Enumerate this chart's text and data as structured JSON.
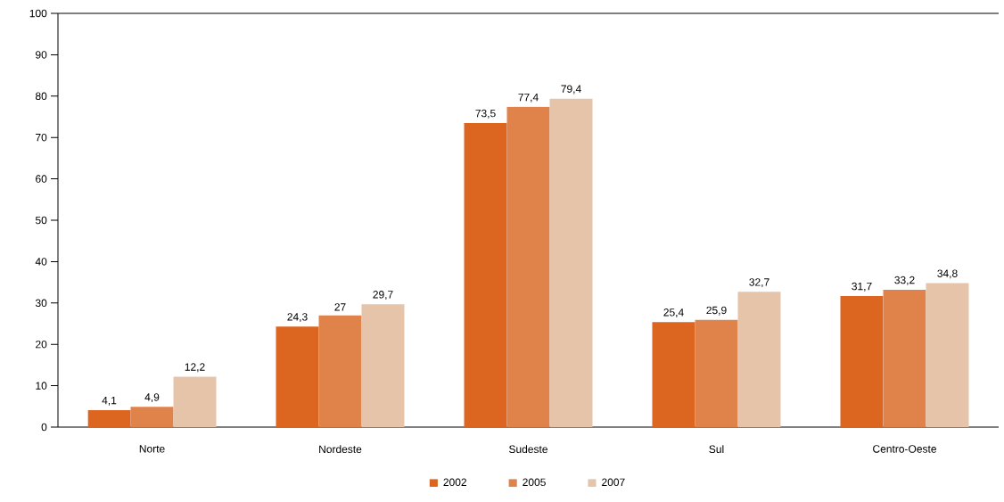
{
  "chart_data": {
    "type": "bar",
    "categories": [
      "Norte",
      "Nordeste",
      "Sudeste",
      "Sul",
      "Centro-Oeste"
    ],
    "series": [
      {
        "name": "2002",
        "color": "#dc6520",
        "values": [
          4.1,
          24.3,
          73.5,
          25.4,
          31.7
        ],
        "value_labels": [
          "4,1",
          "24,3",
          "73,5",
          "25,4",
          "31,7"
        ]
      },
      {
        "name": "2005",
        "color": "#e0834a",
        "values": [
          4.9,
          27,
          77.4,
          25.9,
          33.2
        ],
        "value_labels": [
          "4,9",
          "27",
          "77,4",
          "25,9",
          "33,2"
        ]
      },
      {
        "name": "2007",
        "color": "#e6c4a9",
        "values": [
          12.2,
          29.7,
          79.4,
          32.7,
          34.8
        ],
        "value_labels": [
          "12,2",
          "29,7",
          "79,4",
          "32,7",
          "34,8"
        ]
      }
    ],
    "ylim": [
      0,
      100
    ],
    "yticks": [
      0,
      10,
      20,
      30,
      40,
      50,
      60,
      70,
      80,
      90,
      100
    ],
    "grid": false,
    "legend": "bottom"
  }
}
